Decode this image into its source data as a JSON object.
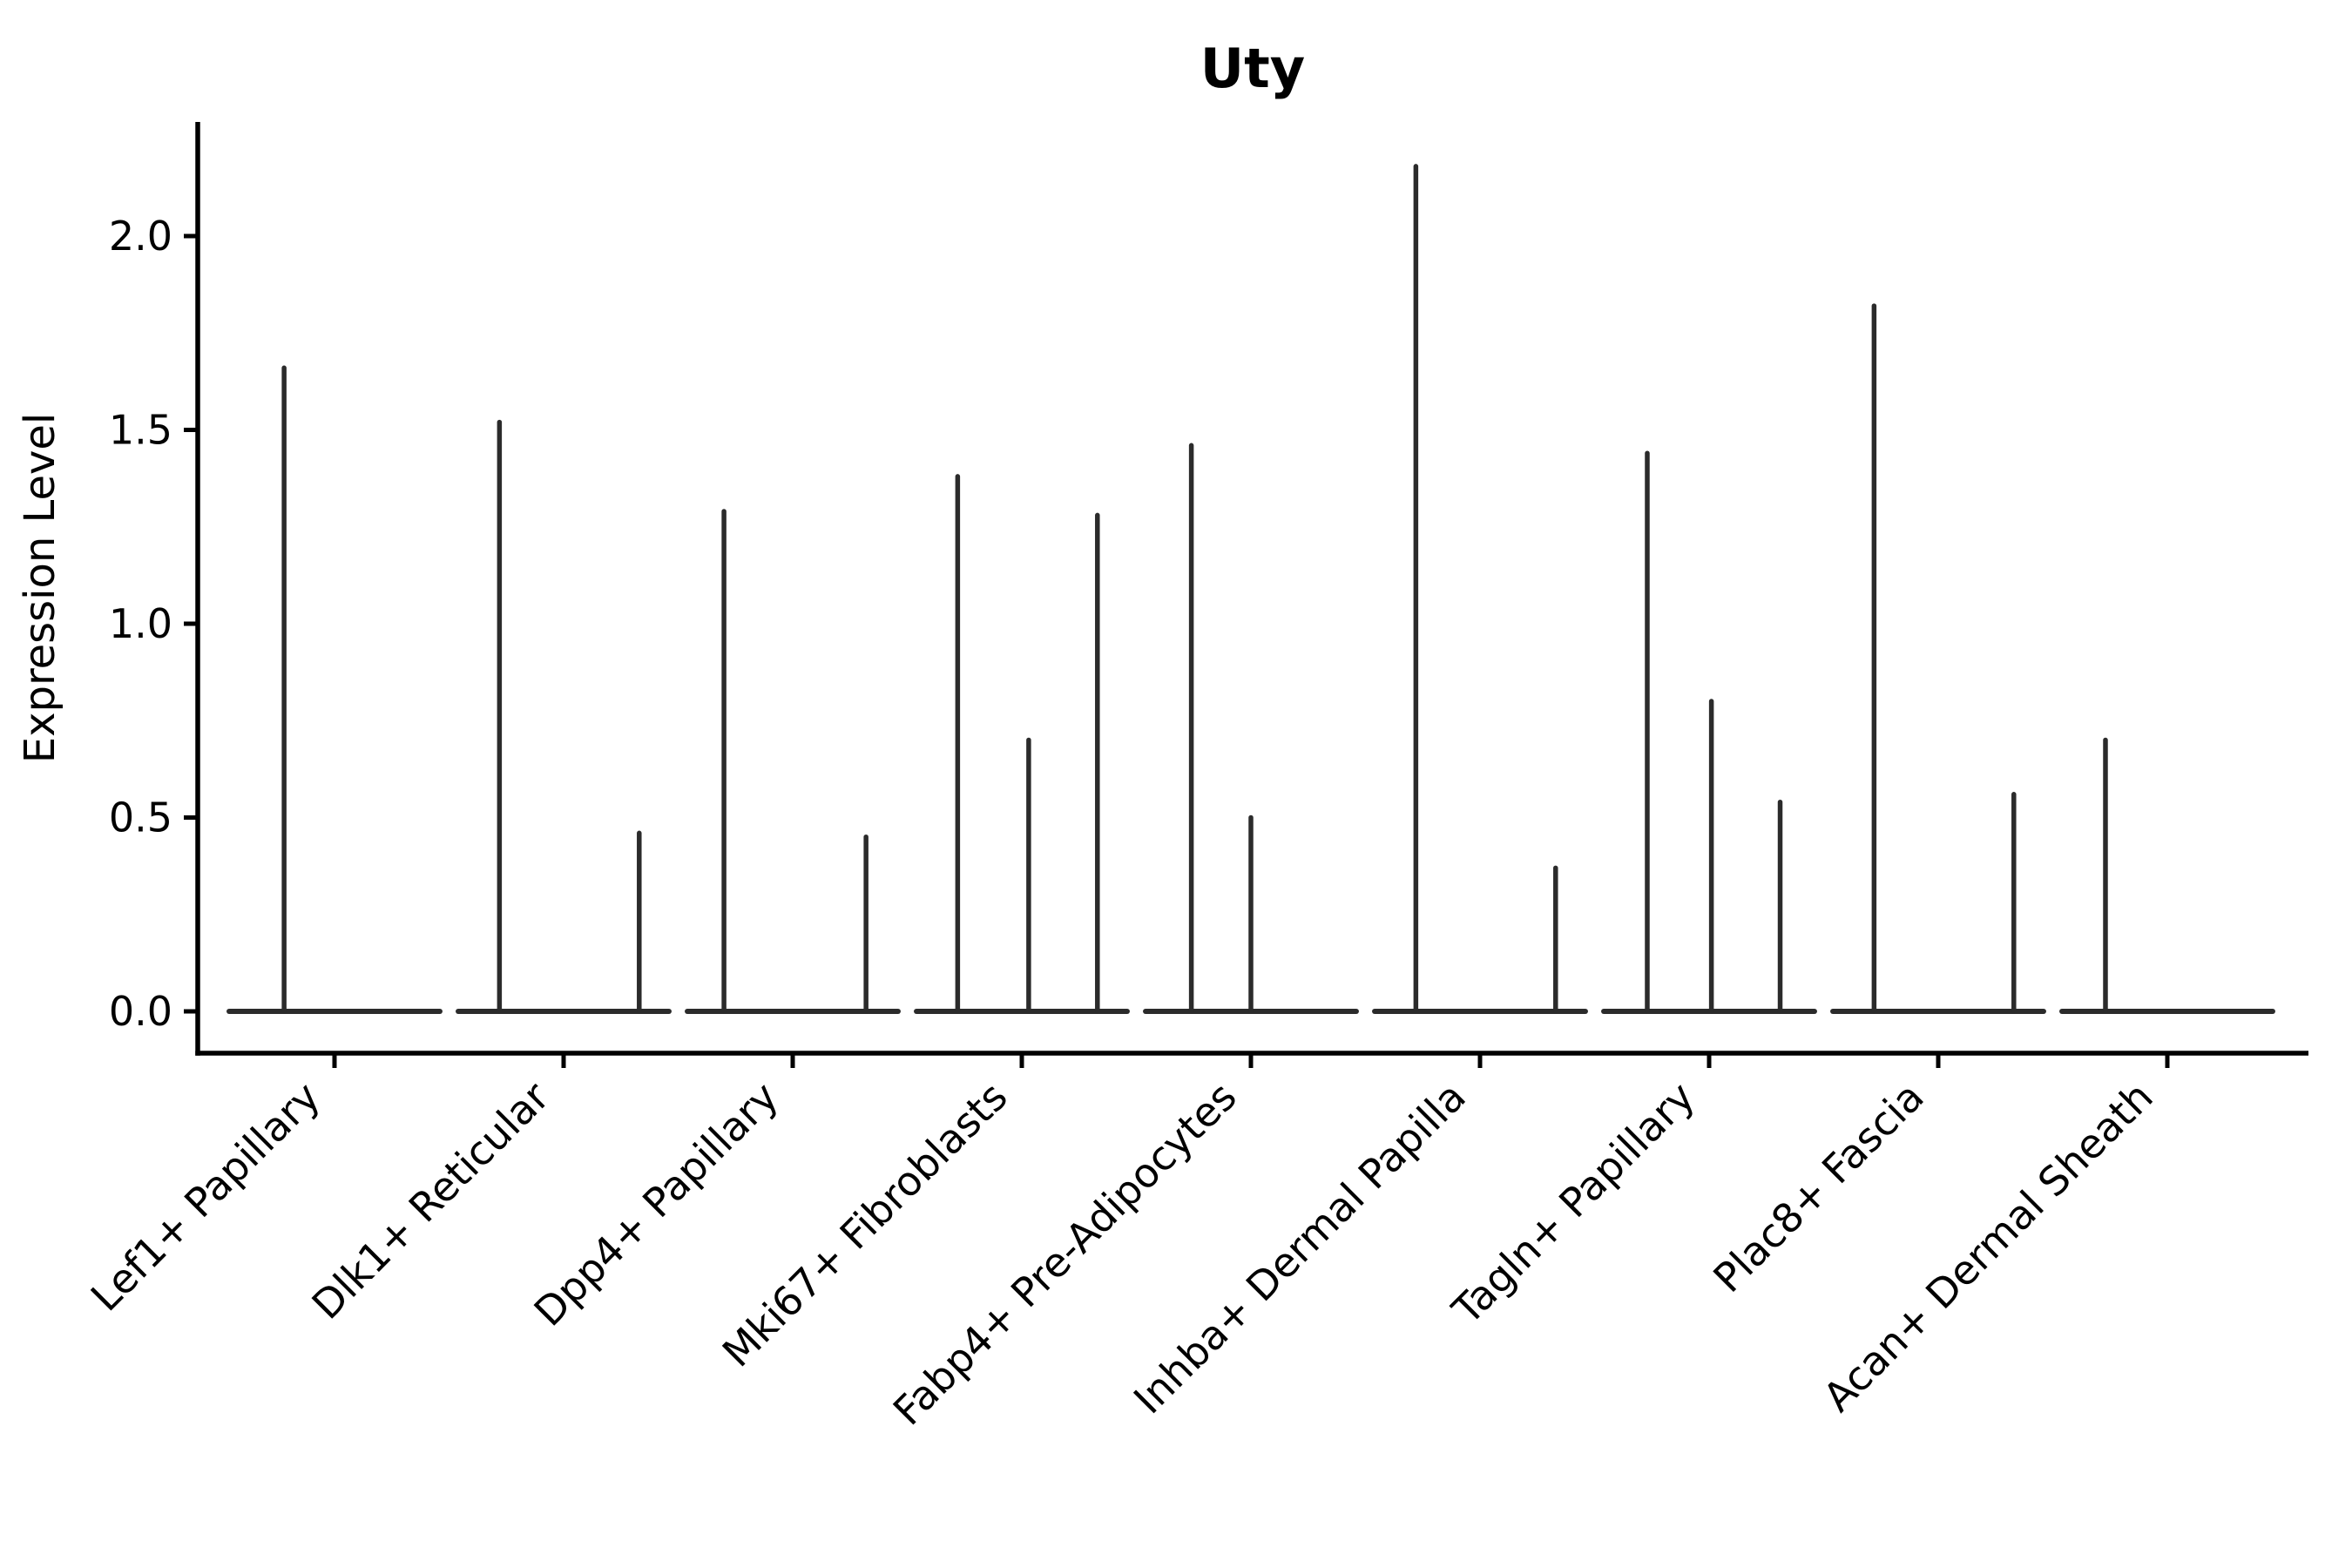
{
  "figure": {
    "title": "Uty",
    "background_color": "#ffffff",
    "axis_color": "#000000",
    "violin_color": "#2b2b2b"
  },
  "chart_data": {
    "type": "violin",
    "title": "Uty",
    "xlabel": "",
    "ylabel": "Expression Level",
    "yticks": [
      "0.0",
      "0.5",
      "1.0",
      "1.5",
      "2.0"
    ],
    "ylim": [
      -0.11,
      2.3
    ],
    "grid": false,
    "legend": false,
    "x_tick_rotation_degrees": 45,
    "categories": [
      "Lef1+ Papillary",
      "Dlk1+ Reticular",
      "Dpp4+ Papillary",
      "Mki67+ Fibroblasts",
      "Fabp4+ Pre-Adipocytes",
      "Inhba+ Dermal Papilla",
      "Tagln+ Papillary",
      "Plac8+ Fascia",
      "Acan+ Dermal Sheath"
    ],
    "description": "Violin plot of Uty expression per fibroblast cluster; each category shows a flat violin base at expression 0 with thin density spikes rising to the maximum expressed values. Spike offsets are fractions of the category spacing relative to the category center.",
    "violins": [
      {
        "category": "Lef1+ Papillary",
        "base_half_width": 0.46,
        "spikes": [
          {
            "offset": -0.22,
            "max_expression": 1.66
          }
        ]
      },
      {
        "category": "Dlk1+ Reticular",
        "base_half_width": 0.46,
        "spikes": [
          {
            "offset": -0.28,
            "max_expression": 1.52
          },
          {
            "offset": 0.33,
            "max_expression": 0.46
          }
        ]
      },
      {
        "category": "Dpp4+ Papillary",
        "base_half_width": 0.46,
        "spikes": [
          {
            "offset": -0.3,
            "max_expression": 1.29
          },
          {
            "offset": 0.32,
            "max_expression": 0.45
          }
        ]
      },
      {
        "category": "Mki67+ Fibroblasts",
        "base_half_width": 0.46,
        "spikes": [
          {
            "offset": -0.28,
            "max_expression": 1.38
          },
          {
            "offset": 0.03,
            "max_expression": 0.7
          },
          {
            "offset": 0.33,
            "max_expression": 1.28
          }
        ]
      },
      {
        "category": "Fabp4+ Pre-Adipocytes",
        "base_half_width": 0.46,
        "spikes": [
          {
            "offset": -0.26,
            "max_expression": 1.46
          },
          {
            "offset": 0.0,
            "max_expression": 0.5
          }
        ]
      },
      {
        "category": "Inhba+ Dermal Papilla",
        "base_half_width": 0.46,
        "spikes": [
          {
            "offset": -0.28,
            "max_expression": 2.18
          },
          {
            "offset": 0.33,
            "max_expression": 0.37
          }
        ]
      },
      {
        "category": "Tagln+ Papillary",
        "base_half_width": 0.46,
        "spikes": [
          {
            "offset": -0.27,
            "max_expression": 1.44
          },
          {
            "offset": 0.01,
            "max_expression": 0.8
          },
          {
            "offset": 0.31,
            "max_expression": 0.54
          }
        ]
      },
      {
        "category": "Plac8+ Fascia",
        "base_half_width": 0.46,
        "spikes": [
          {
            "offset": -0.28,
            "max_expression": 1.82
          },
          {
            "offset": 0.33,
            "max_expression": 0.56
          }
        ]
      },
      {
        "category": "Acan+ Dermal Sheath",
        "base_half_width": 0.46,
        "spikes": [
          {
            "offset": -0.27,
            "max_expression": 0.7
          }
        ]
      }
    ]
  }
}
